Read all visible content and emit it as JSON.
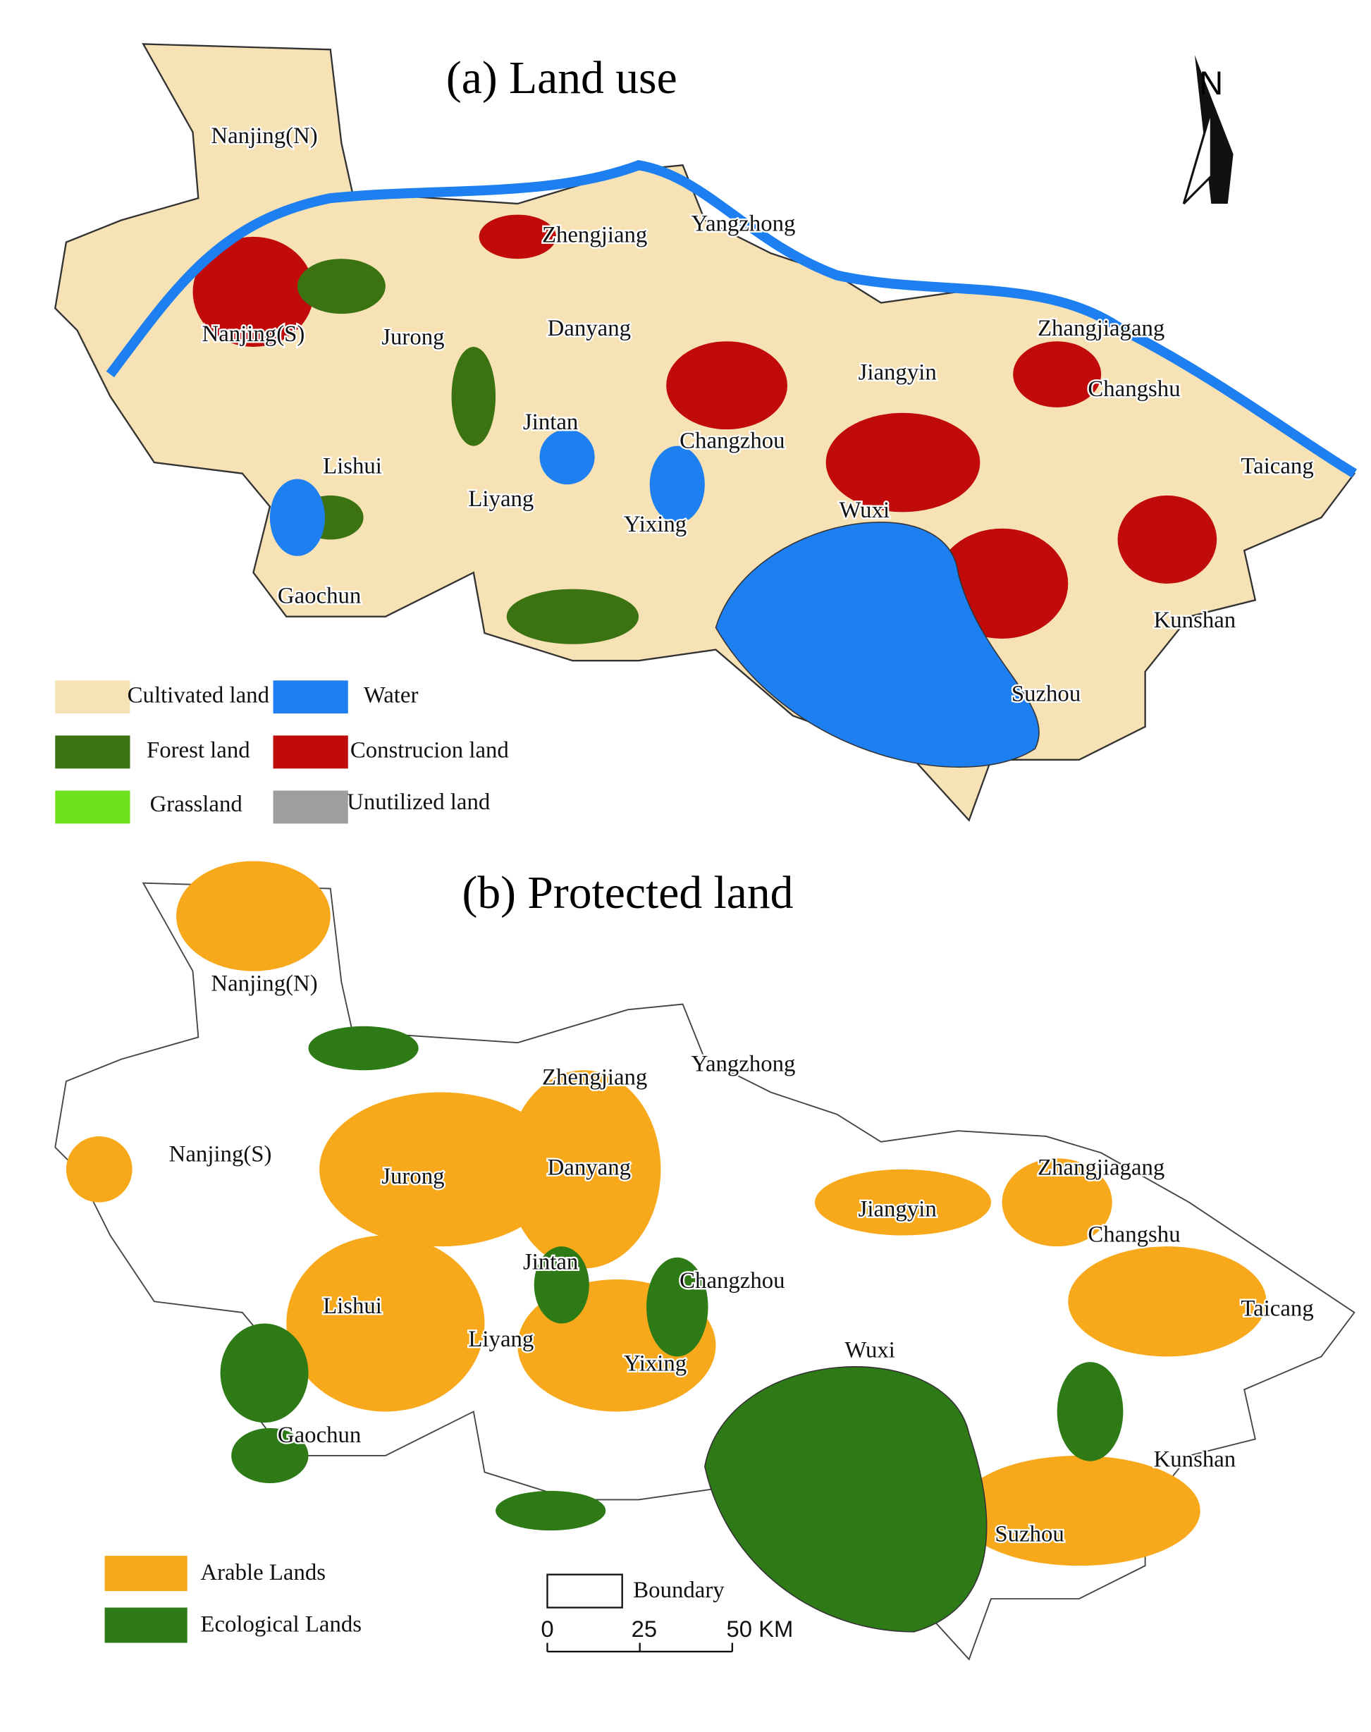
{
  "panels": [
    {
      "title": "(a) Land use",
      "north": "N",
      "places": [
        "Nanjing(N)",
        "Yangzhong",
        "Zhengjiang",
        "Nanjing(S)",
        "Jurong",
        "Danyang",
        "Zhangjiagang",
        "Jiangyin",
        "Changshu",
        "Jintan",
        "Changzhou",
        "Lishui",
        "Taicang",
        "Liyang",
        "Yixing",
        "Wuxi",
        "Gaochun",
        "Kunshan",
        "Suzhou"
      ],
      "legend": [
        {
          "label": "Cultivated land",
          "color": "#f7e2b6"
        },
        {
          "label": "Water",
          "color": "#1e7ff0"
        },
        {
          "label": "Forest land",
          "color": "#3b7212"
        },
        {
          "label": "Construcion land",
          "color": "#c10a0a"
        },
        {
          "label": "Grassland",
          "color": "#6fe01c"
        },
        {
          "label": "Unutilized land",
          "color": "#9e9e9e"
        }
      ]
    },
    {
      "title": "(b) Protected land",
      "places": [
        "Nanjing(N)",
        "Yangzhong",
        "Zhengjiang",
        "Nanjing(S)",
        "Jurong",
        "Danyang",
        "Zhangjiagang",
        "Jiangyin",
        "Changshu",
        "Jintan",
        "Changzhou",
        "Lishui",
        "Taicang",
        "Liyang",
        "Yixing",
        "Wuxi",
        "Gaochun",
        "Kunshan",
        "Suzhou"
      ],
      "legend": [
        {
          "label": "Arable Lands",
          "color": "#f7a81b"
        },
        {
          "label": "Ecological Lands",
          "color": "#2d7a17"
        }
      ],
      "boundary": "Boundary",
      "scale": [
        "0",
        "25",
        "50 KM"
      ]
    }
  ]
}
